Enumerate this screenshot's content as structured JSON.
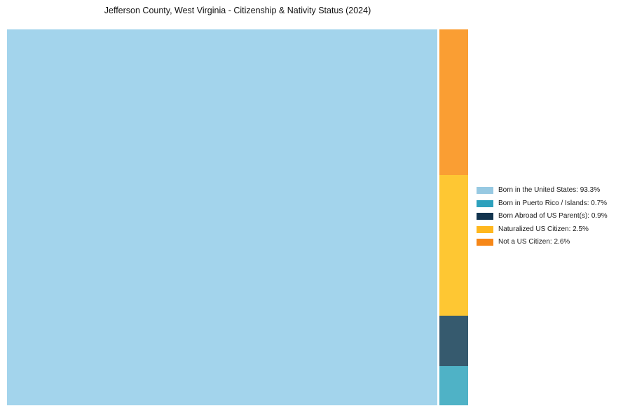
{
  "page": {
    "background_color": "#ffffff",
    "title_color": "#111111",
    "legend_text_color": "#1a1a1a"
  },
  "chart_data": {
    "type": "treemap",
    "title": "Jefferson County, West Virginia - Citizenship & Nativity Status (2024)",
    "legend_position": "right-center",
    "layout": "main tile fills left at full height; remaining segments stacked top-to-bottom in right column",
    "segments": [
      {
        "key": "born-in-us",
        "label": "Born in the United States",
        "value_pct": 93.3,
        "tile_color": "#A3D4EC",
        "legend_color": "#97C9E2",
        "legend_text": "Born in the United States: 93.3%"
      },
      {
        "key": "born-in-puerto-rico",
        "label": "Born in Puerto Rico / Islands",
        "value_pct": 0.7,
        "tile_color": "#4FB2C6",
        "legend_color": "#2DA1BD",
        "legend_text": "Born in Puerto Rico / Islands: 0.7%"
      },
      {
        "key": "born-abroad",
        "label": "Born Abroad of US Parent(s)",
        "value_pct": 0.9,
        "tile_color": "#365A6E",
        "legend_color": "#12344E",
        "legend_text": "Born Abroad of US Parent(s): 0.9%"
      },
      {
        "key": "naturalized",
        "label": "Naturalized US Citizen",
        "value_pct": 2.5,
        "tile_color": "#FEC733",
        "legend_color": "#FFB71E",
        "legend_text": "Naturalized US Citizen: 2.5%"
      },
      {
        "key": "not-a-citizen",
        "label": "Not a US Citizen",
        "value_pct": 2.6,
        "tile_color": "#FA9E33",
        "legend_color": "#F68718",
        "legend_text": "Not a US Citizen: 2.6%"
      }
    ],
    "column_order": [
      "Not a US Citizen",
      "Naturalized US Citizen",
      "Born Abroad of US Parent(s)",
      "Born in Puerto Rico / Islands"
    ]
  }
}
